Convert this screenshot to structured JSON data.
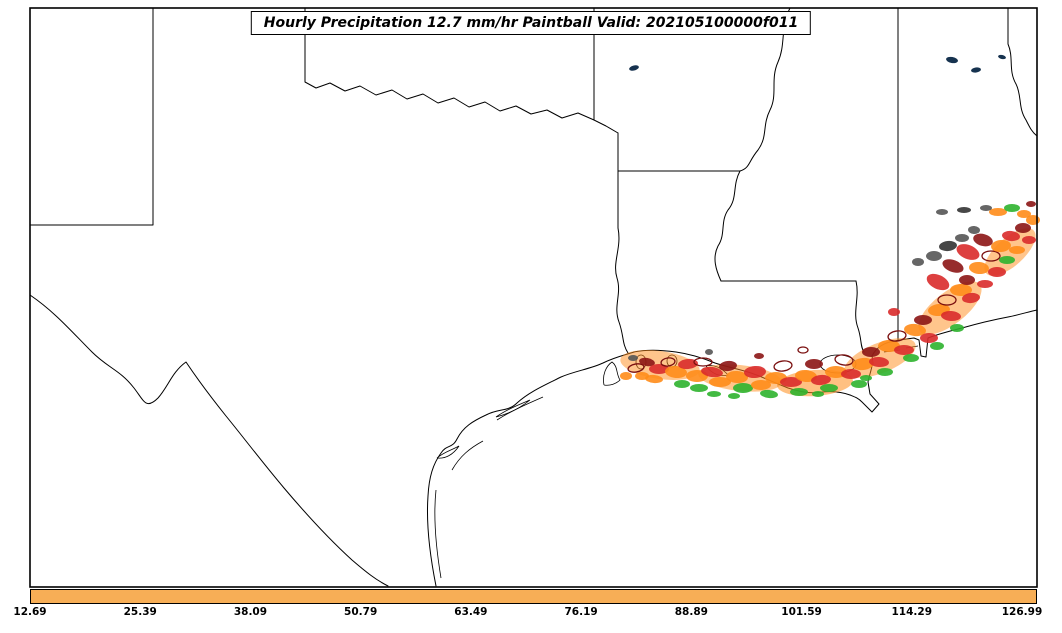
{
  "title": "Hourly Precipitation 12.7 mm/hr Paintball Valid: 202105100000f011",
  "colorbar": {
    "fill": "#F7AE56",
    "border": "#000000",
    "ticks": [
      "12.69",
      "25.39",
      "38.09",
      "50.79",
      "63.49",
      "76.19",
      "88.89",
      "101.59",
      "114.29",
      "126.99"
    ]
  },
  "map": {
    "background": "#ffffff",
    "frame_color": "#000000",
    "state_line_color": "#000000",
    "lake_color": "#16324f"
  },
  "paintball": {
    "palette": {
      "green": "#2db32d",
      "orange": "#ff8c1a",
      "red": "#d92b2b",
      "darkred": "#8c1515",
      "gray": "#555555",
      "darkgray": "#333333",
      "outline": "#7a0f0f"
    },
    "blobs": [
      [
        660,
        365,
        40,
        14,
        8,
        "orange",
        0.5
      ],
      [
        740,
        378,
        42,
        13,
        6,
        "orange",
        0.5
      ],
      [
        815,
        383,
        38,
        13,
        -4,
        "orange",
        0.55
      ],
      [
        880,
        358,
        38,
        15,
        -22,
        "orange",
        0.5
      ],
      [
        950,
        308,
        38,
        16,
        -38,
        "orange",
        0.5
      ],
      [
        1010,
        252,
        32,
        14,
        -42,
        "orange",
        0.5
      ],
      [
        626,
        376,
        6,
        4,
        0,
        "orange"
      ],
      [
        636,
        368,
        8,
        4,
        -10,
        "outline"
      ],
      [
        647,
        362,
        8,
        4,
        10,
        "darkred"
      ],
      [
        659,
        369,
        10,
        5,
        0,
        "red"
      ],
      [
        642,
        376,
        7,
        4,
        0,
        "orange"
      ],
      [
        654,
        379,
        9,
        4,
        5,
        "orange"
      ],
      [
        633,
        358,
        5,
        3,
        0,
        "gray"
      ],
      [
        668,
        362,
        7,
        4,
        -8,
        "outline"
      ],
      [
        676,
        372,
        11,
        6,
        5,
        "orange"
      ],
      [
        688,
        364,
        10,
        5,
        -5,
        "red"
      ],
      [
        697,
        376,
        11,
        6,
        0,
        "orange"
      ],
      [
        703,
        362,
        9,
        4,
        0,
        "outline"
      ],
      [
        712,
        372,
        11,
        5,
        8,
        "red"
      ],
      [
        720,
        382,
        11,
        5,
        0,
        "orange"
      ],
      [
        728,
        366,
        9,
        5,
        -6,
        "darkred"
      ],
      [
        737,
        377,
        11,
        6,
        4,
        "orange"
      ],
      [
        743,
        388,
        10,
        5,
        0,
        "green"
      ],
      [
        699,
        388,
        9,
        4,
        0,
        "green"
      ],
      [
        682,
        384,
        8,
        4,
        0,
        "green"
      ],
      [
        755,
        372,
        11,
        6,
        -4,
        "red"
      ],
      [
        761,
        385,
        10,
        5,
        0,
        "orange"
      ],
      [
        769,
        394,
        9,
        4,
        6,
        "green"
      ],
      [
        776,
        378,
        11,
        6,
        0,
        "orange"
      ],
      [
        783,
        366,
        9,
        5,
        -8,
        "outline"
      ],
      [
        791,
        382,
        11,
        5,
        0,
        "red"
      ],
      [
        799,
        392,
        9,
        4,
        0,
        "green"
      ],
      [
        806,
        376,
        11,
        6,
        5,
        "orange"
      ],
      [
        814,
        364,
        9,
        5,
        0,
        "darkred"
      ],
      [
        821,
        380,
        10,
        5,
        -5,
        "red"
      ],
      [
        829,
        388,
        9,
        4,
        0,
        "green"
      ],
      [
        836,
        372,
        11,
        6,
        0,
        "orange"
      ],
      [
        844,
        360,
        9,
        5,
        8,
        "outline"
      ],
      [
        851,
        374,
        10,
        5,
        0,
        "red"
      ],
      [
        859,
        384,
        8,
        4,
        0,
        "green"
      ],
      [
        863,
        364,
        11,
        6,
        -6,
        "orange"
      ],
      [
        871,
        352,
        9,
        5,
        0,
        "darkred"
      ],
      [
        879,
        362,
        10,
        5,
        4,
        "red"
      ],
      [
        885,
        372,
        8,
        4,
        0,
        "green"
      ],
      [
        889,
        346,
        11,
        6,
        0,
        "orange"
      ],
      [
        897,
        336,
        9,
        5,
        -8,
        "outline"
      ],
      [
        904,
        350,
        10,
        5,
        0,
        "red"
      ],
      [
        911,
        358,
        8,
        4,
        0,
        "green"
      ],
      [
        915,
        330,
        11,
        6,
        6,
        "orange"
      ],
      [
        923,
        320,
        9,
        5,
        0,
        "darkred"
      ],
      [
        929,
        338,
        9,
        5,
        0,
        "red"
      ],
      [
        937,
        346,
        7,
        4,
        0,
        "green"
      ],
      [
        939,
        310,
        11,
        6,
        -5,
        "orange"
      ],
      [
        947,
        300,
        9,
        5,
        0,
        "outline"
      ],
      [
        951,
        316,
        10,
        5,
        4,
        "red"
      ],
      [
        957,
        328,
        7,
        4,
        0,
        "green"
      ],
      [
        961,
        290,
        11,
        6,
        0,
        "orange"
      ],
      [
        967,
        280,
        8,
        5,
        0,
        "darkred"
      ],
      [
        971,
        298,
        9,
        5,
        -6,
        "red"
      ],
      [
        979,
        268,
        10,
        6,
        5,
        "orange"
      ],
      [
        985,
        284,
        8,
        4,
        0,
        "red"
      ],
      [
        991,
        256,
        9,
        5,
        0,
        "outline"
      ],
      [
        997,
        272,
        9,
        5,
        0,
        "red"
      ],
      [
        1001,
        246,
        10,
        6,
        -5,
        "orange"
      ],
      [
        1007,
        260,
        8,
        4,
        0,
        "green"
      ],
      [
        1011,
        236,
        9,
        5,
        6,
        "red"
      ],
      [
        1017,
        250,
        8,
        4,
        0,
        "orange"
      ],
      [
        1023,
        228,
        8,
        5,
        0,
        "darkred"
      ],
      [
        1029,
        240,
        7,
        4,
        0,
        "red"
      ],
      [
        1033,
        220,
        7,
        5,
        0,
        "orange"
      ],
      [
        938,
        282,
        12,
        7,
        25,
        "red"
      ],
      [
        953,
        266,
        11,
        6,
        20,
        "darkred"
      ],
      [
        968,
        252,
        12,
        7,
        22,
        "red"
      ],
      [
        983,
        240,
        10,
        6,
        15,
        "darkred"
      ],
      [
        934,
        256,
        8,
        5,
        0,
        "gray"
      ],
      [
        948,
        246,
        9,
        5,
        -6,
        "darkgray"
      ],
      [
        962,
        238,
        7,
        4,
        0,
        "gray"
      ],
      [
        918,
        262,
        6,
        4,
        0,
        "gray"
      ],
      [
        974,
        230,
        6,
        4,
        5,
        "gray"
      ],
      [
        998,
        212,
        9,
        4,
        0,
        "orange"
      ],
      [
        1012,
        208,
        8,
        4,
        0,
        "green"
      ],
      [
        1024,
        214,
        7,
        4,
        0,
        "orange"
      ],
      [
        986,
        208,
        6,
        3,
        0,
        "gray"
      ],
      [
        964,
        210,
        7,
        3,
        0,
        "darkgray"
      ],
      [
        942,
        212,
        6,
        3,
        0,
        "gray"
      ],
      [
        1031,
        204,
        5,
        3,
        0,
        "darkred"
      ],
      [
        714,
        394,
        7,
        3,
        0,
        "green"
      ],
      [
        734,
        396,
        6,
        3,
        0,
        "green"
      ],
      [
        818,
        394,
        6,
        3,
        0,
        "green"
      ],
      [
        866,
        378,
        6,
        3,
        0,
        "green"
      ],
      [
        803,
        350,
        5,
        3,
        0,
        "outline"
      ],
      [
        759,
        356,
        5,
        3,
        0,
        "darkred"
      ],
      [
        709,
        352,
        4,
        3,
        0,
        "gray"
      ],
      [
        894,
        312,
        6,
        4,
        0,
        "red"
      ]
    ]
  }
}
